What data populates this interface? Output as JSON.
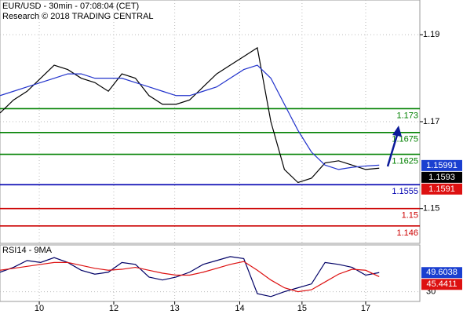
{
  "chart_data": {
    "type": "line",
    "title": "EUR/USD - 30min - 07:08:04 (CET)",
    "subtitle": "Research © 2018 TRADING CENTRAL",
    "x": [
      0,
      1,
      2,
      3,
      4,
      5,
      6,
      7,
      8,
      9,
      10,
      11,
      12,
      13,
      14,
      15,
      16,
      17,
      18,
      19,
      20,
      21,
      22,
      23,
      24,
      25,
      26,
      27,
      28
    ],
    "xlim": [
      0,
      31
    ],
    "xticks": [
      {
        "value": 2.9,
        "label": "10"
      },
      {
        "value": 8.4,
        "label": "12"
      },
      {
        "value": 12.9,
        "label": "13"
      },
      {
        "value": 17.7,
        "label": "14"
      },
      {
        "value": 22.3,
        "label": "15"
      },
      {
        "value": 27,
        "label": "17"
      }
    ],
    "ylim": [
      1.142,
      1.198
    ],
    "yticks": [
      1.19,
      1.17,
      1.15
    ],
    "grid": true,
    "series": [
      {
        "color": "#000000",
        "values": [
          1.172,
          1.175,
          1.177,
          1.18,
          1.183,
          1.182,
          1.18,
          1.179,
          1.177,
          1.181,
          1.18,
          1.176,
          1.174,
          1.174,
          1.175,
          1.178,
          1.181,
          1.183,
          1.185,
          1.187,
          1.17,
          1.159,
          1.156,
          1.157,
          1.1605,
          1.161,
          1.16,
          1.159,
          1.1593
        ]
      },
      {
        "color": "#2233cc",
        "values": [
          1.176,
          1.177,
          1.178,
          1.179,
          1.18,
          1.181,
          1.181,
          1.18,
          1.18,
          1.18,
          1.179,
          1.178,
          1.177,
          1.176,
          1.176,
          1.177,
          1.178,
          1.18,
          1.182,
          1.183,
          1.18,
          1.174,
          1.168,
          1.163,
          1.16,
          1.159,
          1.1595,
          1.1598,
          1.16
        ]
      }
    ],
    "levels": [
      {
        "value": 1.173,
        "color": "#008000"
      },
      {
        "value": 1.1675,
        "color": "#008000"
      },
      {
        "value": 1.1625,
        "color": "#008000"
      },
      {
        "value": 1.1555,
        "color": "#0000b0"
      },
      {
        "value": 1.15,
        "color": "#cc0000"
      },
      {
        "value": 1.146,
        "color": "#cc0000"
      }
    ],
    "price_boxes": [
      {
        "value": 1.15991,
        "color": "#1a3fd0"
      },
      {
        "value": 1.1593,
        "color": "#000000"
      },
      {
        "value": 1.1591,
        "color": "#dd1111"
      }
    ],
    "rsi": {
      "title": "RSI14 - 9MA",
      "ylim": [
        20,
        78
      ],
      "yticks": [
        30
      ],
      "series": [
        {
          "color": "#000066",
          "values": [
            50,
            55,
            62,
            60,
            65,
            60,
            52,
            48,
            50,
            60,
            58,
            45,
            42,
            45,
            50,
            58,
            62,
            66,
            64,
            28,
            25,
            30,
            34,
            38,
            60,
            58,
            55,
            47,
            49.6038
          ]
        },
        {
          "color": "#dd1111",
          "values": [
            52,
            54,
            56,
            58,
            60,
            60,
            57,
            54,
            52,
            53,
            55,
            52,
            49,
            47,
            47,
            50,
            54,
            58,
            61,
            52,
            42,
            34,
            30,
            32,
            40,
            48,
            53,
            52,
            45.4411
          ]
        }
      ],
      "boxes": [
        {
          "value": 49.6038,
          "color": "#1a3fd0"
        },
        {
          "value": 45.4411,
          "color": "#dd1111"
        }
      ]
    }
  }
}
